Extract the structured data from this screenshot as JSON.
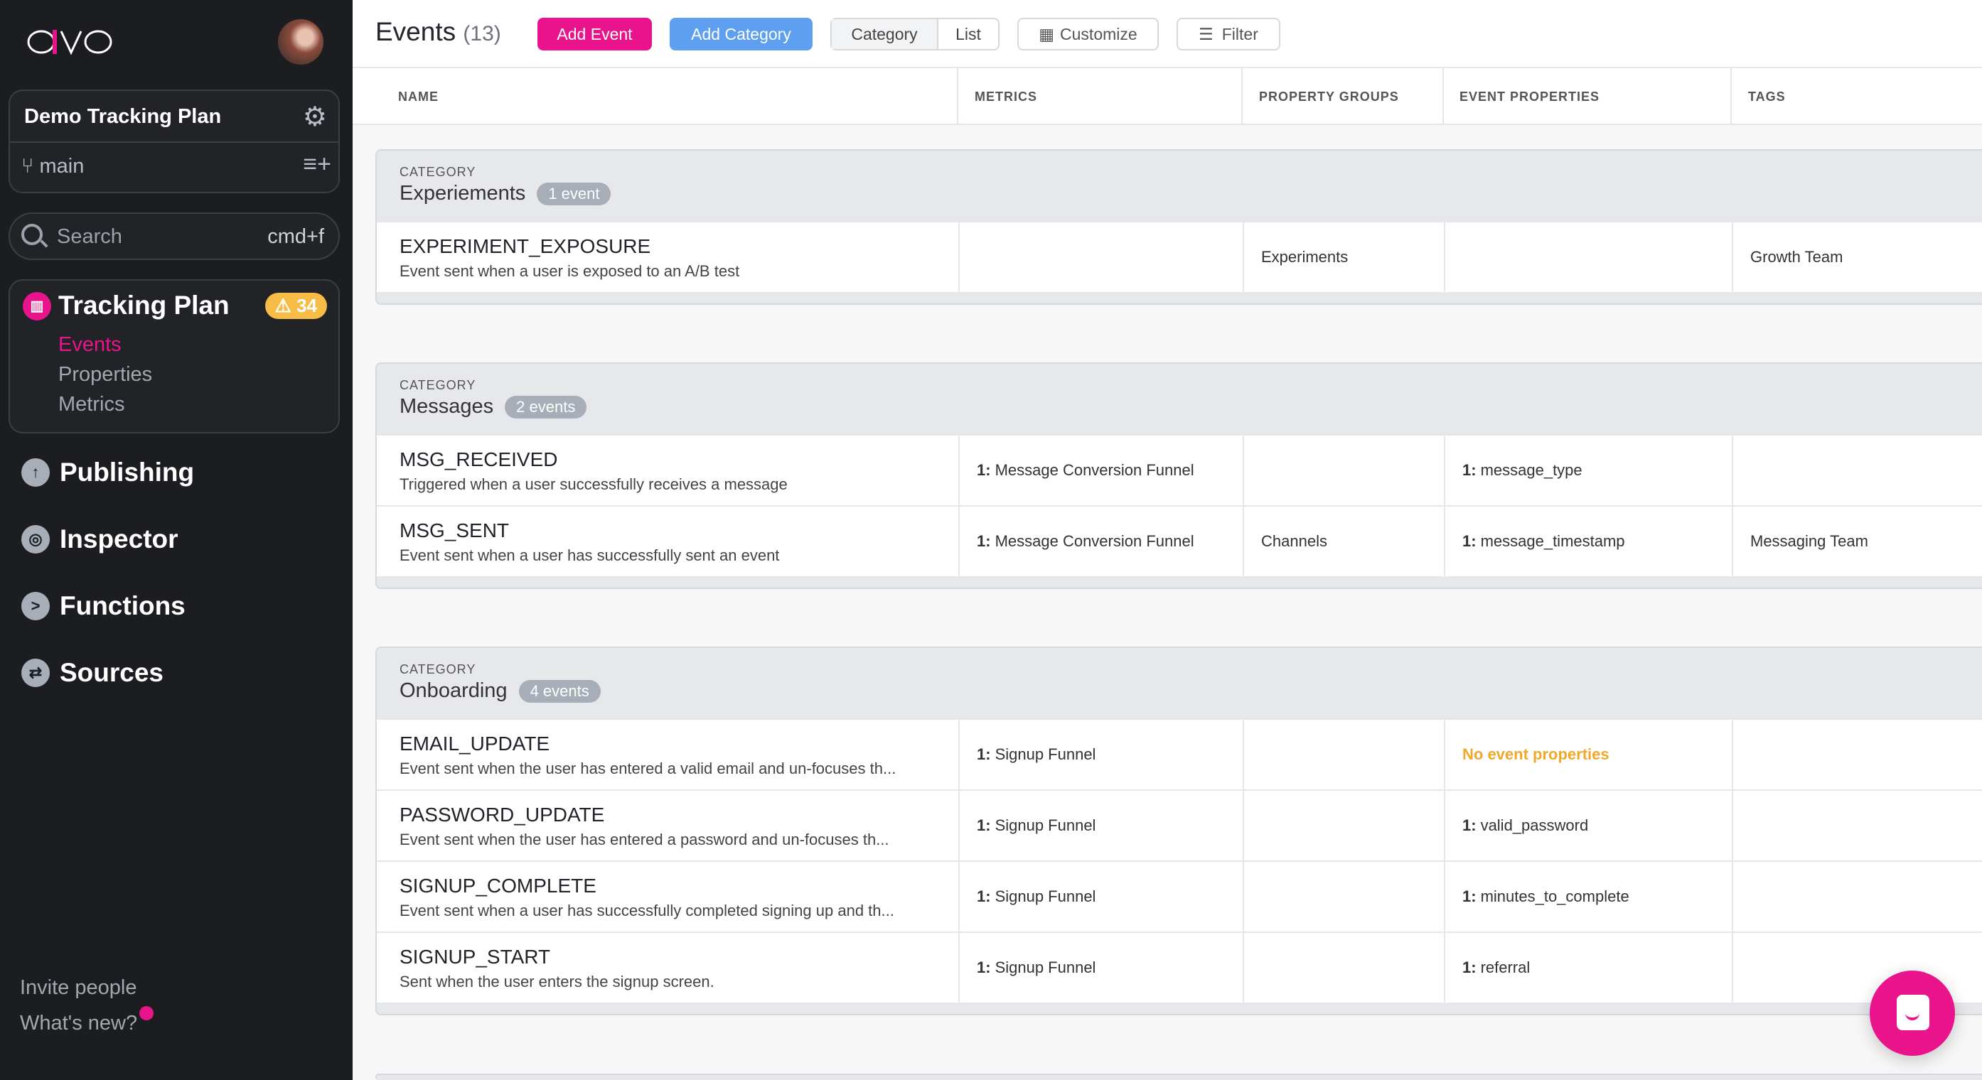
{
  "sidebar": {
    "logo": "avo",
    "project": {
      "name": "Demo Tracking Plan",
      "branch": "main"
    },
    "search": {
      "placeholder": "Search",
      "shortcut": "cmd+f"
    },
    "tracking_plan": {
      "title": "Tracking Plan",
      "warning_count": "34",
      "items": [
        "Events",
        "Properties",
        "Metrics"
      ],
      "active": "Events"
    },
    "nav": [
      {
        "label": "Publishing",
        "icon": "upload-cloud-icon"
      },
      {
        "label": "Inspector",
        "icon": "inspector-icon"
      },
      {
        "label": "Functions",
        "icon": "terminal-icon"
      },
      {
        "label": "Sources",
        "icon": "sources-icon"
      }
    ],
    "footer": {
      "invite": "Invite people",
      "whats_new": "What's new?"
    }
  },
  "header": {
    "title": "Events",
    "count": "(13)",
    "add_event": "Add Event",
    "add_category": "Add Category",
    "view_category": "Category",
    "view_list": "List",
    "customize": "Customize",
    "filter": "Filter"
  },
  "columns": [
    "NAME",
    "METRICS",
    "PROPERTY GROUPS",
    "EVENT PROPERTIES",
    "TAGS"
  ],
  "category_label": "CATEGORY",
  "categories": [
    {
      "name": "Experiements",
      "count": "1 event",
      "events": [
        {
          "name": "EXPERIMENT_EXPOSURE",
          "desc": "Event sent when a user is exposed to an A/B test",
          "metrics": "",
          "groups": "Experiments",
          "props": "",
          "tags": "Growth Team"
        }
      ]
    },
    {
      "name": "Messages",
      "count": "2 events",
      "events": [
        {
          "name": "MSG_RECEIVED",
          "desc": "Triggered when a user successfully receives a message",
          "metrics": "Message Conversion Funnel",
          "groups": "",
          "props": "message_type",
          "tags": ""
        },
        {
          "name": "MSG_SENT",
          "desc": "Event sent when a user has successfully sent an event",
          "metrics": "Message Conversion Funnel",
          "groups": "Channels",
          "props": "message_timestamp",
          "tags": "Messaging Team"
        }
      ]
    },
    {
      "name": "Onboarding",
      "count": "4 events",
      "events": [
        {
          "name": "EMAIL_UPDATE",
          "desc": "Event sent when the user has entered a valid email and un-focuses th...",
          "metrics": "Signup Funnel",
          "groups": "",
          "props": "",
          "props_empty": "No event properties",
          "tags": ""
        },
        {
          "name": "PASSWORD_UPDATE",
          "desc": "Event sent when the user has entered a password and un-focuses th...",
          "metrics": "Signup Funnel",
          "groups": "",
          "props": "valid_password",
          "tags": ""
        },
        {
          "name": "SIGNUP_COMPLETE",
          "desc": "Event sent when a user has successfully completed signing up and th...",
          "metrics": "Signup Funnel",
          "groups": "",
          "props": "minutes_to_complete",
          "tags": ""
        },
        {
          "name": "SIGNUP_START",
          "desc": "Sent when the user enters the signup screen.",
          "metrics": "Signup Funnel",
          "groups": "",
          "props": "referral",
          "tags": ""
        }
      ]
    }
  ],
  "list_prefix": "1:",
  "colors": {
    "brand": "#e9138c",
    "blue": "#5f9ff0",
    "warning": "#f6bc45",
    "sidebar_bg": "#1c1d20"
  }
}
